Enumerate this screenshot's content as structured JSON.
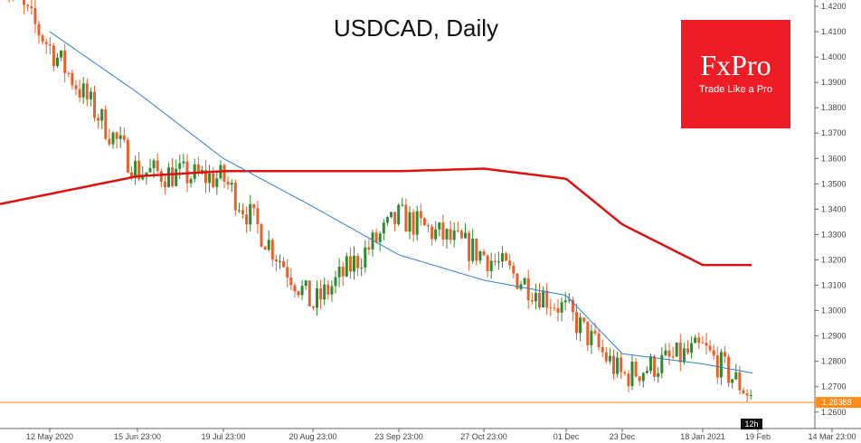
{
  "chart_data": {
    "type": "candlestick",
    "title": "USDCAD, Daily",
    "ylim": [
      1.2535,
      1.4225
    ],
    "y_ticks": [
      "1.2600",
      "1.2700",
      "1.2800",
      "1.2900",
      "1.3000",
      "1.3100",
      "1.3200",
      "1.3300",
      "1.3400",
      "1.3500",
      "1.3600",
      "1.3700",
      "1.3800",
      "1.3900",
      "1.4000",
      "1.4100",
      "1.4200"
    ],
    "x_ticks": [
      "12 May 2020",
      "15 Jun 23:00",
      "19 Jul 23:00",
      "20 Aug 23:00",
      "23 Sep 23:00",
      "27 Oct 23:00",
      "01 Dec",
      "23 Dec",
      "18 Jan 2021",
      "19 Feb",
      "14 Mar 23:00"
    ],
    "price_line": {
      "value": 1.2638,
      "label": "1.26388",
      "color": "#ff8c1a"
    },
    "time_marker": {
      "label": "12h"
    },
    "colors": {
      "up": "#2e8b2e",
      "down": "#e8602c",
      "ma_fast": "#2a7fd4",
      "ma_slow": "#dd1111"
    },
    "series": [
      {
        "kind": "close_anchors",
        "x": [
          "12 May 2020",
          "15 Jun 23:00",
          "19 Jul 23:00",
          "20 Aug 23:00",
          "23 Sep 23:00",
          "27 Oct 23:00",
          "01 Dec",
          "23 Dec",
          "18 Jan 2021",
          "19 Feb"
        ],
        "values": [
          1.404,
          1.355,
          1.352,
          1.302,
          1.337,
          1.322,
          1.3,
          1.274,
          1.285,
          1.264
        ]
      },
      {
        "kind": "ma_fast",
        "values": [
          1.41,
          1.386,
          1.36,
          1.341,
          1.322,
          1.312,
          1.306,
          1.283,
          1.279,
          1.275
        ]
      },
      {
        "kind": "ma_slow",
        "values": [
          1.346,
          1.353,
          1.355,
          1.355,
          1.355,
          1.356,
          1.352,
          1.334,
          1.318,
          1.318
        ]
      }
    ]
  },
  "logo": {
    "brand": "FxPro",
    "tagline": "Trade Like a Pro"
  }
}
